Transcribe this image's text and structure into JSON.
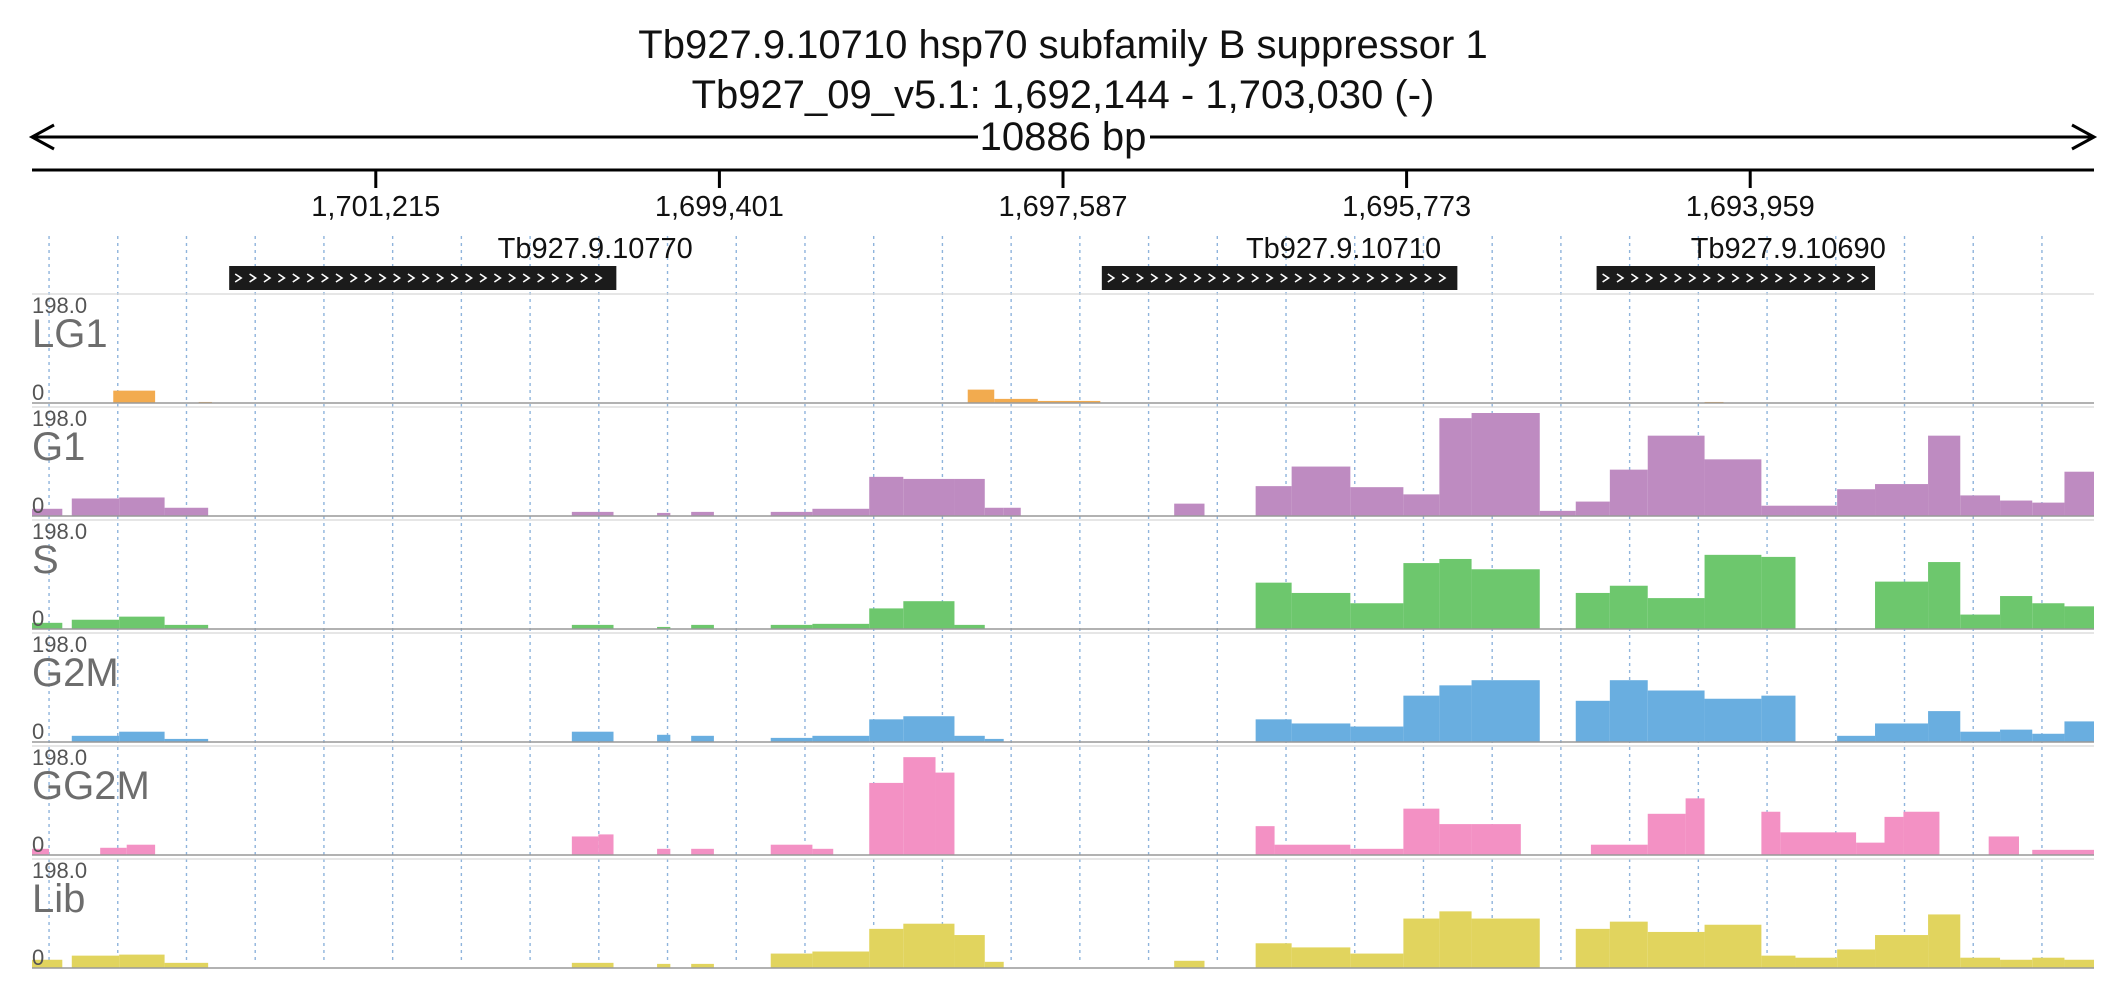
{
  "header": {
    "title": "Tb927.9.10710  hsp70 subfamily B suppressor 1",
    "region": "Tb927_09_v5.1: 1,692,144 - 1,703,030 (-)",
    "span": "10886 bp"
  },
  "chart_data": {
    "type": "area",
    "region": {
      "chromosome": "Tb927_09_v5.1",
      "start": 1692144,
      "end": 1703030,
      "strand": "-"
    },
    "axis": {
      "orientation": "reversed",
      "ticks": [
        1701215,
        1699401,
        1697587,
        1695773,
        1693959
      ],
      "tick_labels": [
        "1,701,215",
        "1,699,401",
        "1,697,587",
        "1,695,773",
        "1,693,959"
      ]
    },
    "genes": [
      {
        "id": "Tb927.9.10770",
        "start": 1697823,
        "end": 1702290,
        "cds_start": 1699945,
        "cds_end": 1701989
      },
      {
        "id": "Tb927.9.10710",
        "start": 1694830,
        "end": 1697382,
        "cds_start": 1695505,
        "cds_end": 1697382
      },
      {
        "id": "Tb927.9.10690",
        "start": 1692586,
        "end": 1694930,
        "cds_start": 1693300,
        "cds_end": 1694770
      }
    ],
    "tracks": [
      {
        "name": "LG1",
        "max": "198.0",
        "min": "0",
        "color": "#f2ab4f",
        "segments": [
          {
            "start": 1702601,
            "end": 1702380,
            "level": 0.12
          },
          {
            "start": 1702150,
            "end": 1702080,
            "level": 0.01
          },
          {
            "start": 1698090,
            "end": 1697950,
            "level": 0.13
          },
          {
            "start": 1697950,
            "end": 1697720,
            "level": 0.04
          },
          {
            "start": 1697720,
            "end": 1697390,
            "level": 0.02
          },
          {
            "start": 1694200,
            "end": 1694100,
            "level": 0.01
          }
        ]
      },
      {
        "name": "G1",
        "max": "198.0",
        "min": "0",
        "color": "#be8bc1",
        "segments": [
          {
            "start": 1703030,
            "end": 1702870,
            "level": 0.07
          },
          {
            "start": 1702820,
            "end": 1702570,
            "level": 0.17
          },
          {
            "start": 1702570,
            "end": 1702330,
            "level": 0.18
          },
          {
            "start": 1702330,
            "end": 1702100,
            "level": 0.08
          },
          {
            "start": 1700180,
            "end": 1699960,
            "level": 0.04
          },
          {
            "start": 1699730,
            "end": 1699660,
            "level": 0.03
          },
          {
            "start": 1699550,
            "end": 1699430,
            "level": 0.04
          },
          {
            "start": 1699130,
            "end": 1698910,
            "level": 0.04
          },
          {
            "start": 1698910,
            "end": 1698610,
            "level": 0.07
          },
          {
            "start": 1698610,
            "end": 1698430,
            "level": 0.38
          },
          {
            "start": 1698430,
            "end": 1698160,
            "level": 0.36
          },
          {
            "start": 1698160,
            "end": 1698000,
            "level": 0.36
          },
          {
            "start": 1698000,
            "end": 1697900,
            "level": 0.08
          },
          {
            "start": 1697900,
            "end": 1697810,
            "level": 0.08
          },
          {
            "start": 1697000,
            "end": 1696840,
            "level": 0.12
          },
          {
            "start": 1696570,
            "end": 1696380,
            "level": 0.29
          },
          {
            "start": 1696380,
            "end": 1696070,
            "level": 0.48
          },
          {
            "start": 1696070,
            "end": 1695790,
            "level": 0.28
          },
          {
            "start": 1695790,
            "end": 1695600,
            "level": 0.21
          },
          {
            "start": 1695600,
            "end": 1695430,
            "level": 0.95
          },
          {
            "start": 1695430,
            "end": 1695070,
            "level": 1.0
          },
          {
            "start": 1695070,
            "end": 1694880,
            "level": 0.05
          },
          {
            "start": 1694880,
            "end": 1694700,
            "level": 0.14
          },
          {
            "start": 1694700,
            "end": 1694500,
            "level": 0.45
          },
          {
            "start": 1694500,
            "end": 1694200,
            "level": 0.78
          },
          {
            "start": 1694200,
            "end": 1693900,
            "level": 0.55
          },
          {
            "start": 1693900,
            "end": 1693720,
            "level": 0.1
          },
          {
            "start": 1693720,
            "end": 1693500,
            "level": 0.1
          },
          {
            "start": 1693500,
            "end": 1693300,
            "level": 0.26
          },
          {
            "start": 1693300,
            "end": 1693020,
            "level": 0.31
          },
          {
            "start": 1693020,
            "end": 1692850,
            "level": 0.78
          },
          {
            "start": 1692850,
            "end": 1692640,
            "level": 0.2
          },
          {
            "start": 1692640,
            "end": 1692470,
            "level": 0.15
          },
          {
            "start": 1692470,
            "end": 1692300,
            "level": 0.13
          },
          {
            "start": 1692300,
            "end": 1692144,
            "level": 0.43
          }
        ]
      },
      {
        "name": "S",
        "max": "198.0",
        "min": "0",
        "color": "#6dc76d",
        "segments": [
          {
            "start": 1703030,
            "end": 1702870,
            "level": 0.06
          },
          {
            "start": 1702820,
            "end": 1702570,
            "level": 0.09
          },
          {
            "start": 1702570,
            "end": 1702330,
            "level": 0.12
          },
          {
            "start": 1702330,
            "end": 1702100,
            "level": 0.04
          },
          {
            "start": 1700180,
            "end": 1699960,
            "level": 0.04
          },
          {
            "start": 1699730,
            "end": 1699660,
            "level": 0.02
          },
          {
            "start": 1699550,
            "end": 1699430,
            "level": 0.04
          },
          {
            "start": 1699130,
            "end": 1698910,
            "level": 0.04
          },
          {
            "start": 1698910,
            "end": 1698610,
            "level": 0.05
          },
          {
            "start": 1698610,
            "end": 1698430,
            "level": 0.2
          },
          {
            "start": 1698430,
            "end": 1698160,
            "level": 0.27
          },
          {
            "start": 1698160,
            "end": 1698000,
            "level": 0.04
          },
          {
            "start": 1696570,
            "end": 1696380,
            "level": 0.45
          },
          {
            "start": 1696380,
            "end": 1696070,
            "level": 0.35
          },
          {
            "start": 1696070,
            "end": 1695790,
            "level": 0.25
          },
          {
            "start": 1695790,
            "end": 1695600,
            "level": 0.64
          },
          {
            "start": 1695600,
            "end": 1695430,
            "level": 0.68
          },
          {
            "start": 1695430,
            "end": 1695070,
            "level": 0.58
          },
          {
            "start": 1694880,
            "end": 1694700,
            "level": 0.35
          },
          {
            "start": 1694700,
            "end": 1694500,
            "level": 0.42
          },
          {
            "start": 1694500,
            "end": 1694200,
            "level": 0.3
          },
          {
            "start": 1694200,
            "end": 1693900,
            "level": 0.72
          },
          {
            "start": 1693900,
            "end": 1693720,
            "level": 0.7
          },
          {
            "start": 1693300,
            "end": 1693020,
            "level": 0.46
          },
          {
            "start": 1693020,
            "end": 1692850,
            "level": 0.65
          },
          {
            "start": 1692850,
            "end": 1692640,
            "level": 0.14
          },
          {
            "start": 1692640,
            "end": 1692470,
            "level": 0.32
          },
          {
            "start": 1692470,
            "end": 1692300,
            "level": 0.25
          },
          {
            "start": 1692300,
            "end": 1692144,
            "level": 0.22
          }
        ]
      },
      {
        "name": "G2M",
        "max": "198.0",
        "min": "0",
        "color": "#69aee0",
        "segments": [
          {
            "start": 1702820,
            "end": 1702570,
            "level": 0.06
          },
          {
            "start": 1702570,
            "end": 1702330,
            "level": 0.1
          },
          {
            "start": 1702330,
            "end": 1702100,
            "level": 0.03
          },
          {
            "start": 1700180,
            "end": 1699960,
            "level": 0.1
          },
          {
            "start": 1699730,
            "end": 1699660,
            "level": 0.07
          },
          {
            "start": 1699550,
            "end": 1699430,
            "level": 0.06
          },
          {
            "start": 1699130,
            "end": 1698910,
            "level": 0.04
          },
          {
            "start": 1698910,
            "end": 1698610,
            "level": 0.06
          },
          {
            "start": 1698610,
            "end": 1698430,
            "level": 0.22
          },
          {
            "start": 1698430,
            "end": 1698160,
            "level": 0.25
          },
          {
            "start": 1698160,
            "end": 1698000,
            "level": 0.06
          },
          {
            "start": 1698000,
            "end": 1697900,
            "level": 0.03
          },
          {
            "start": 1696570,
            "end": 1696380,
            "level": 0.22
          },
          {
            "start": 1696380,
            "end": 1696070,
            "level": 0.18
          },
          {
            "start": 1696070,
            "end": 1695790,
            "level": 0.15
          },
          {
            "start": 1695790,
            "end": 1695600,
            "level": 0.45
          },
          {
            "start": 1695600,
            "end": 1695430,
            "level": 0.55
          },
          {
            "start": 1695430,
            "end": 1695070,
            "level": 0.6
          },
          {
            "start": 1694880,
            "end": 1694700,
            "level": 0.4
          },
          {
            "start": 1694700,
            "end": 1694500,
            "level": 0.6
          },
          {
            "start": 1694500,
            "end": 1694200,
            "level": 0.5
          },
          {
            "start": 1694200,
            "end": 1693900,
            "level": 0.42
          },
          {
            "start": 1693900,
            "end": 1693720,
            "level": 0.45
          },
          {
            "start": 1693500,
            "end": 1693300,
            "level": 0.06
          },
          {
            "start": 1693300,
            "end": 1693020,
            "level": 0.18
          },
          {
            "start": 1693020,
            "end": 1692850,
            "level": 0.3
          },
          {
            "start": 1692850,
            "end": 1692640,
            "level": 0.1
          },
          {
            "start": 1692640,
            "end": 1692470,
            "level": 0.12
          },
          {
            "start": 1692470,
            "end": 1692300,
            "level": 0.08
          },
          {
            "start": 1692300,
            "end": 1692144,
            "level": 0.2
          }
        ]
      },
      {
        "name": "GG2M",
        "max": "198.0",
        "min": "0",
        "color": "#f391c4",
        "segments": [
          {
            "start": 1703030,
            "end": 1702940,
            "level": 0.06
          },
          {
            "start": 1702670,
            "end": 1702530,
            "level": 0.07
          },
          {
            "start": 1702530,
            "end": 1702380,
            "level": 0.1
          },
          {
            "start": 1700180,
            "end": 1700040,
            "level": 0.18
          },
          {
            "start": 1700040,
            "end": 1699960,
            "level": 0.2
          },
          {
            "start": 1699730,
            "end": 1699660,
            "level": 0.06
          },
          {
            "start": 1699550,
            "end": 1699430,
            "level": 0.06
          },
          {
            "start": 1699130,
            "end": 1698910,
            "level": 0.1
          },
          {
            "start": 1698910,
            "end": 1698800,
            "level": 0.06
          },
          {
            "start": 1698610,
            "end": 1698430,
            "level": 0.7
          },
          {
            "start": 1698430,
            "end": 1698260,
            "level": 0.95
          },
          {
            "start": 1698260,
            "end": 1698160,
            "level": 0.8
          },
          {
            "start": 1696570,
            "end": 1696470,
            "level": 0.28
          },
          {
            "start": 1696470,
            "end": 1696070,
            "level": 0.1
          },
          {
            "start": 1696070,
            "end": 1695790,
            "level": 0.06
          },
          {
            "start": 1695790,
            "end": 1695600,
            "level": 0.45
          },
          {
            "start": 1695600,
            "end": 1695430,
            "level": 0.3
          },
          {
            "start": 1695430,
            "end": 1695170,
            "level": 0.3
          },
          {
            "start": 1694800,
            "end": 1694500,
            "level": 0.1
          },
          {
            "start": 1694500,
            "end": 1694300,
            "level": 0.4
          },
          {
            "start": 1694300,
            "end": 1694200,
            "level": 0.55
          },
          {
            "start": 1693900,
            "end": 1693800,
            "level": 0.42
          },
          {
            "start": 1693800,
            "end": 1693400,
            "level": 0.22
          },
          {
            "start": 1693400,
            "end": 1693250,
            "level": 0.12
          },
          {
            "start": 1693250,
            "end": 1693150,
            "level": 0.37
          },
          {
            "start": 1693150,
            "end": 1692960,
            "level": 0.42
          },
          {
            "start": 1692700,
            "end": 1692540,
            "level": 0.18
          },
          {
            "start": 1692470,
            "end": 1692144,
            "level": 0.05
          }
        ]
      },
      {
        "name": "Lib",
        "max": "198.0",
        "min": "0",
        "color": "#e1d45e",
        "segments": [
          {
            "start": 1703030,
            "end": 1702870,
            "level": 0.08
          },
          {
            "start": 1702820,
            "end": 1702570,
            "level": 0.12
          },
          {
            "start": 1702570,
            "end": 1702330,
            "level": 0.13
          },
          {
            "start": 1702330,
            "end": 1702100,
            "level": 0.05
          },
          {
            "start": 1700180,
            "end": 1699960,
            "level": 0.05
          },
          {
            "start": 1699730,
            "end": 1699660,
            "level": 0.04
          },
          {
            "start": 1699550,
            "end": 1699430,
            "level": 0.04
          },
          {
            "start": 1699130,
            "end": 1698910,
            "level": 0.14
          },
          {
            "start": 1698910,
            "end": 1698610,
            "level": 0.16
          },
          {
            "start": 1698610,
            "end": 1698430,
            "level": 0.38
          },
          {
            "start": 1698430,
            "end": 1698160,
            "level": 0.43
          },
          {
            "start": 1698160,
            "end": 1698000,
            "level": 0.32
          },
          {
            "start": 1698000,
            "end": 1697900,
            "level": 0.06
          },
          {
            "start": 1697000,
            "end": 1696840,
            "level": 0.07
          },
          {
            "start": 1696570,
            "end": 1696380,
            "level": 0.24
          },
          {
            "start": 1696380,
            "end": 1696070,
            "level": 0.2
          },
          {
            "start": 1696070,
            "end": 1695790,
            "level": 0.14
          },
          {
            "start": 1695790,
            "end": 1695600,
            "level": 0.48
          },
          {
            "start": 1695600,
            "end": 1695430,
            "level": 0.55
          },
          {
            "start": 1695430,
            "end": 1695070,
            "level": 0.48
          },
          {
            "start": 1694880,
            "end": 1694700,
            "level": 0.38
          },
          {
            "start": 1694700,
            "end": 1694500,
            "level": 0.45
          },
          {
            "start": 1694500,
            "end": 1694200,
            "level": 0.35
          },
          {
            "start": 1694200,
            "end": 1693900,
            "level": 0.42
          },
          {
            "start": 1693900,
            "end": 1693720,
            "level": 0.12
          },
          {
            "start": 1693720,
            "end": 1693500,
            "level": 0.1
          },
          {
            "start": 1693500,
            "end": 1693300,
            "level": 0.18
          },
          {
            "start": 1693300,
            "end": 1693020,
            "level": 0.32
          },
          {
            "start": 1693020,
            "end": 1692850,
            "level": 0.52
          },
          {
            "start": 1692850,
            "end": 1692640,
            "level": 0.1
          },
          {
            "start": 1692640,
            "end": 1692470,
            "level": 0.08
          },
          {
            "start": 1692470,
            "end": 1692300,
            "level": 0.1
          },
          {
            "start": 1692300,
            "end": 1692144,
            "level": 0.08
          }
        ]
      }
    ]
  }
}
